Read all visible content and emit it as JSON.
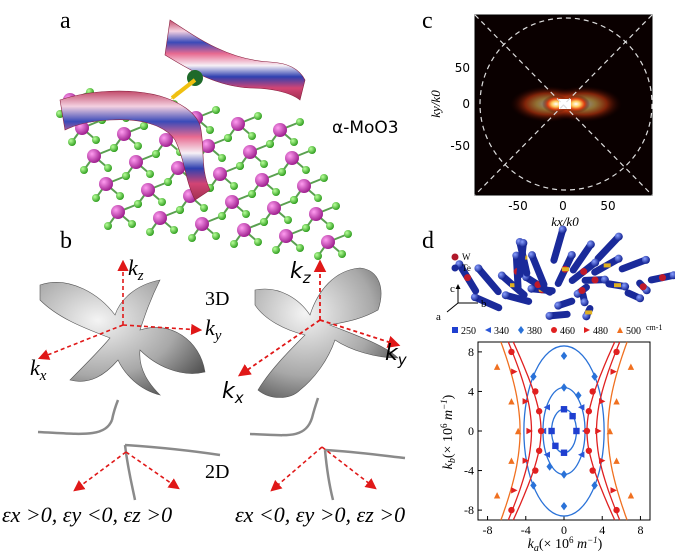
{
  "panel_labels": {
    "a": "a",
    "b": "b",
    "c": "c",
    "d": "d"
  },
  "panel_a": {
    "material_label": "α-MoO3"
  },
  "panel_b": {
    "dim3": "3D",
    "dim2": "2D",
    "axes_left": {
      "x": "k",
      "x_sub": "x",
      "y": "k",
      "y_sub": "y",
      "z": "k",
      "z_sub": "z"
    },
    "axes_right": {
      "x": "k",
      "x_sub": "x",
      "y": "k",
      "y_sub": "y",
      "z": "k",
      "z_sub": "z"
    },
    "condition_left": "εx >0, εy <0, εz >0",
    "condition_right": "εx <0, εy >0, εz >0"
  },
  "panel_c": {
    "xlabel": "kx/k0",
    "ylabel": "ky/k0",
    "xticks": [
      "-50",
      "0",
      "50"
    ],
    "yticks": [
      "50",
      "0",
      "-50"
    ]
  },
  "panel_d": {
    "crystal_legend": [
      {
        "label": "W",
        "color": "#b0182a"
      },
      {
        "label": "Te",
        "color": "#1a2a9a"
      }
    ],
    "crystal_axes": {
      "c": "c",
      "b": "b",
      "a": "a"
    },
    "chart_data": {
      "type": "scatter",
      "xlabel": "ka(× 10^6 m^-1)",
      "ylabel": "kb(× 10^6 m^-1)",
      "xlim": [
        -9,
        9
      ],
      "ylim": [
        -9,
        9
      ],
      "xticks": [
        "-8",
        "-4",
        "0",
        "4",
        "8"
      ],
      "yticks": [
        "8",
        "4",
        "0",
        "-4",
        "-8"
      ],
      "legend_unit": "cm-1",
      "series": [
        {
          "name": "250",
          "color": "#1f3fd0",
          "marker": "square"
        },
        {
          "name": "340",
          "color": "#2a56d8",
          "marker": "triangle-left"
        },
        {
          "name": "380",
          "color": "#2a72d8",
          "marker": "diamond"
        },
        {
          "name": "460",
          "color": "#e02020",
          "marker": "circle"
        },
        {
          "name": "480",
          "color": "#e02020",
          "marker": "triangle-right"
        },
        {
          "name": "500",
          "color": "#f07020",
          "marker": "triangle-up"
        }
      ]
    }
  }
}
